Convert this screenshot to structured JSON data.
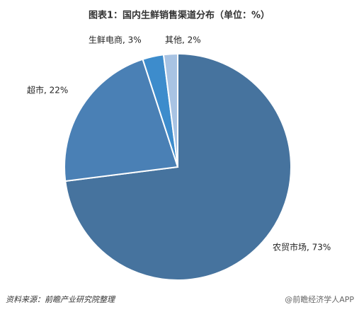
{
  "chart_data": {
    "type": "pie",
    "title": "图表1：国内生鲜销售渠道分布（单位：%）",
    "values": [
      73,
      22,
      3,
      2
    ],
    "value_labels": [
      "农贸市场, 73%",
      "超市, 22%",
      "生鲜电商, 3%",
      "其他, 2%"
    ],
    "colors": [
      "#46739e",
      "#4a80b5",
      "#3d8ccc",
      "#a8c3e3"
    ],
    "source": "资料来源：前瞻产业研究院整理",
    "credit": "@前瞻经济学人APP"
  }
}
